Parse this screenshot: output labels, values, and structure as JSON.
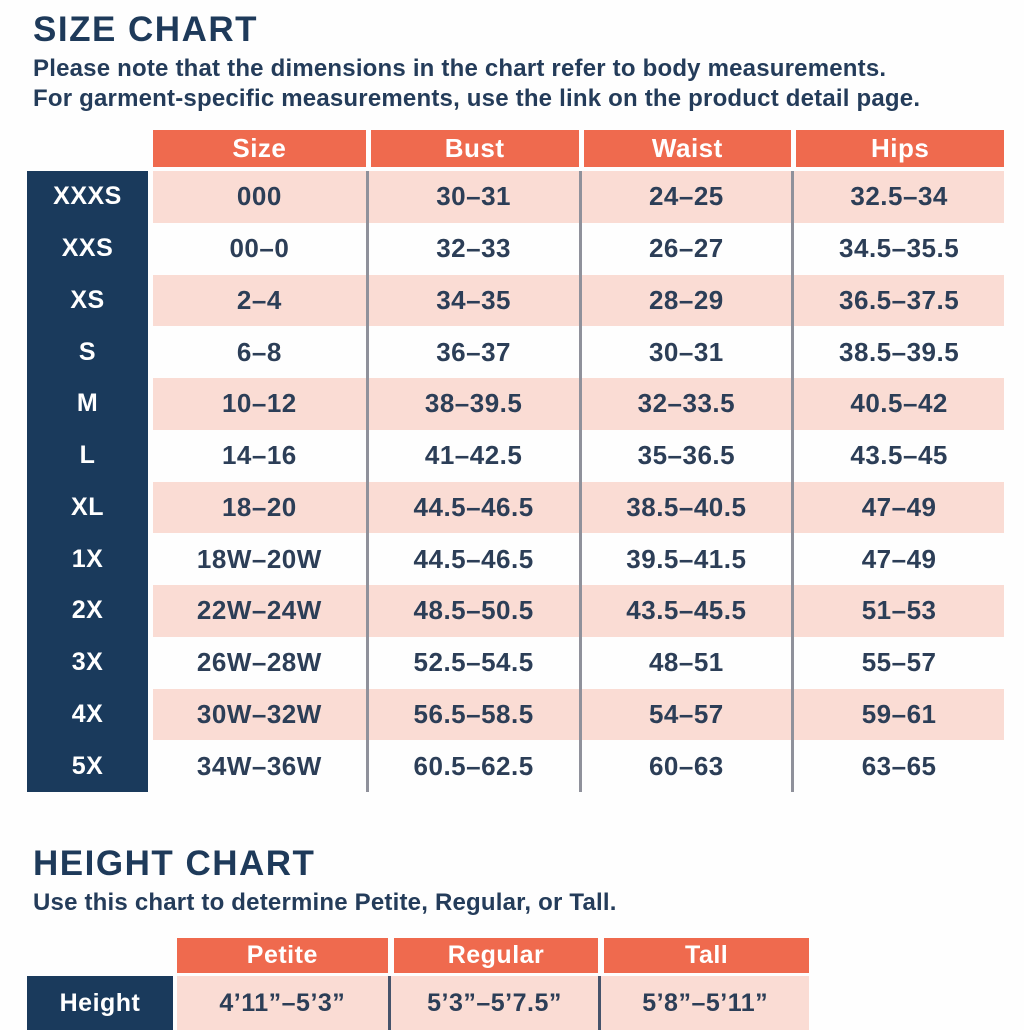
{
  "colors": {
    "accent_orange": "#ef6a4e",
    "navy": "#1a3a5c",
    "row_pink": "#fadcd4",
    "text_navy": "#2c3e57",
    "divider_gray": "#8f919b"
  },
  "size_chart": {
    "title": "SIZE CHART",
    "note_line1": "Please note that the dimensions in the chart refer to body measurements.",
    "note_line2": "For garment-specific measurements, use the link on the product detail page.",
    "columns": [
      "Size",
      "Bust",
      "Waist",
      "Hips"
    ],
    "rows": [
      {
        "label": "XXXS",
        "size": "000",
        "bust": "30–31",
        "waist": "24–25",
        "hips": "32.5–34"
      },
      {
        "label": "XXS",
        "size": "00–0",
        "bust": "32–33",
        "waist": "26–27",
        "hips": "34.5–35.5"
      },
      {
        "label": "XS",
        "size": "2–4",
        "bust": "34–35",
        "waist": "28–29",
        "hips": "36.5–37.5"
      },
      {
        "label": "S",
        "size": "6–8",
        "bust": "36–37",
        "waist": "30–31",
        "hips": "38.5–39.5"
      },
      {
        "label": "M",
        "size": "10–12",
        "bust": "38–39.5",
        "waist": "32–33.5",
        "hips": "40.5–42"
      },
      {
        "label": "L",
        "size": "14–16",
        "bust": "41–42.5",
        "waist": "35–36.5",
        "hips": "43.5–45"
      },
      {
        "label": "XL",
        "size": "18–20",
        "bust": "44.5–46.5",
        "waist": "38.5–40.5",
        "hips": "47–49"
      },
      {
        "label": "1X",
        "size": "18W–20W",
        "bust": "44.5–46.5",
        "waist": "39.5–41.5",
        "hips": "47–49"
      },
      {
        "label": "2X",
        "size": "22W–24W",
        "bust": "48.5–50.5",
        "waist": "43.5–45.5",
        "hips": "51–53"
      },
      {
        "label": "3X",
        "size": "26W–28W",
        "bust": "52.5–54.5",
        "waist": "48–51",
        "hips": "55–57"
      },
      {
        "label": "4X",
        "size": "30W–32W",
        "bust": "56.5–58.5",
        "waist": "54–57",
        "hips": "59–61"
      },
      {
        "label": "5X",
        "size": "34W–36W",
        "bust": "60.5–62.5",
        "waist": "60–63",
        "hips": "63–65"
      }
    ]
  },
  "height_chart": {
    "title": "HEIGHT CHART",
    "subtitle": "Use this chart to determine Petite, Regular, or Tall.",
    "columns": [
      "Petite",
      "Regular",
      "Tall"
    ],
    "row_label": "Height",
    "values": [
      "4’11”–5’3”",
      "5’3”–5’7.5”",
      "5’8”–5’11”"
    ]
  }
}
